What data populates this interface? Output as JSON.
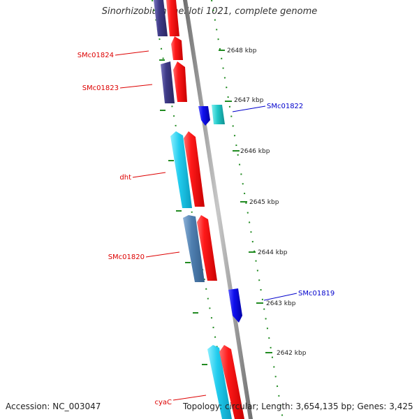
{
  "title": "Sinorhizobium meliloti 1021, complete genome",
  "accession": "Accession: NC_003047",
  "topology": "Topology: circular; Length: 3,654,135 bp; Genes: 3,425",
  "colors": {
    "background": "#ffffff",
    "backbone": "#8c8c8c",
    "tick": "#228b22",
    "gene_red": "#ff0000",
    "gene_cyan": "#1ec8e8",
    "gene_steelblue": "#4f7fb0",
    "gene_navy": "#3e3a86",
    "gene_blue": "#1010ee",
    "gene_teal": "#20c8c8",
    "label_red": "#dd0000",
    "label_blue": "#0000cc"
  },
  "scale_ticks": [
    "2648 kbp",
    "2647 kbp",
    "2646 kbp",
    "2645 kbp",
    "2644 kbp",
    "2643 kbp",
    "2642 kbp"
  ],
  "gene_labels": {
    "SMc01824": "SMc01824",
    "SMc01823": "SMc01823",
    "SMc01822": "SMc01822",
    "dht": "dht",
    "SMc01820": "SMc01820",
    "SMc01819": "SMc01819",
    "cyaC": "cyaC"
  }
}
